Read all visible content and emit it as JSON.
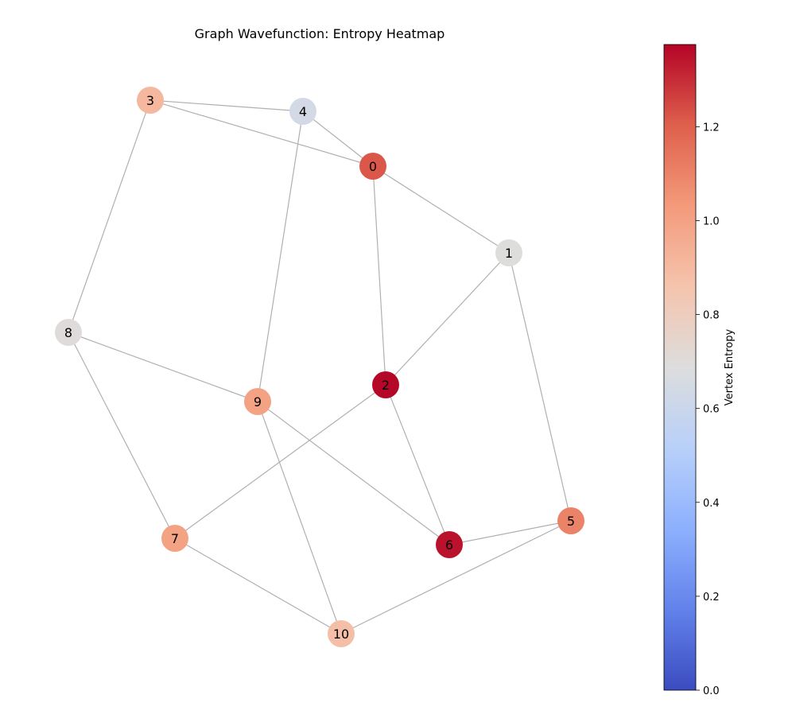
{
  "chart_data": {
    "type": "network-graph",
    "title": "Graph Wavefunction: Entropy Heatmap",
    "colormap": "coolwarm",
    "nodes": [
      {
        "id": "0",
        "label": "0",
        "entropy": 1.22
      },
      {
        "id": "1",
        "label": "1",
        "entropy": 0.69
      },
      {
        "id": "2",
        "label": "2",
        "entropy": 1.37
      },
      {
        "id": "3",
        "label": "3",
        "entropy": 0.91
      },
      {
        "id": "4",
        "label": "4",
        "entropy": 0.64
      },
      {
        "id": "5",
        "label": "5",
        "entropy": 1.1
      },
      {
        "id": "6",
        "label": "6",
        "entropy": 1.35
      },
      {
        "id": "7",
        "label": "7",
        "entropy": 1.0
      },
      {
        "id": "8",
        "label": "8",
        "entropy": 0.7
      },
      {
        "id": "9",
        "label": "9",
        "entropy": 1.0
      },
      {
        "id": "10",
        "label": "10",
        "entropy": 0.88
      }
    ],
    "edges": [
      [
        "3",
        "4"
      ],
      [
        "3",
        "0"
      ],
      [
        "3",
        "8"
      ],
      [
        "4",
        "0"
      ],
      [
        "4",
        "9"
      ],
      [
        "0",
        "1"
      ],
      [
        "0",
        "2"
      ],
      [
        "1",
        "2"
      ],
      [
        "1",
        "5"
      ],
      [
        "8",
        "9"
      ],
      [
        "8",
        "7"
      ],
      [
        "2",
        "7"
      ],
      [
        "2",
        "6"
      ],
      [
        "9",
        "6"
      ],
      [
        "9",
        "10"
      ],
      [
        "6",
        "5"
      ],
      [
        "5",
        "10"
      ],
      [
        "7",
        "10"
      ]
    ],
    "colorbar": {
      "label": "Vertex Entropy",
      "min": 0.0,
      "max": 1.375,
      "ticks": [
        {
          "value": 0.0,
          "label": "0.0"
        },
        {
          "value": 0.2,
          "label": "0.2"
        },
        {
          "value": 0.4,
          "label": "0.4"
        },
        {
          "value": 0.6,
          "label": "0.6"
        },
        {
          "value": 0.8,
          "label": "0.8"
        },
        {
          "value": 1.0,
          "label": "1.0"
        },
        {
          "value": 1.2,
          "label": "1.2"
        }
      ]
    },
    "edge_color": "#b0b0b0"
  }
}
